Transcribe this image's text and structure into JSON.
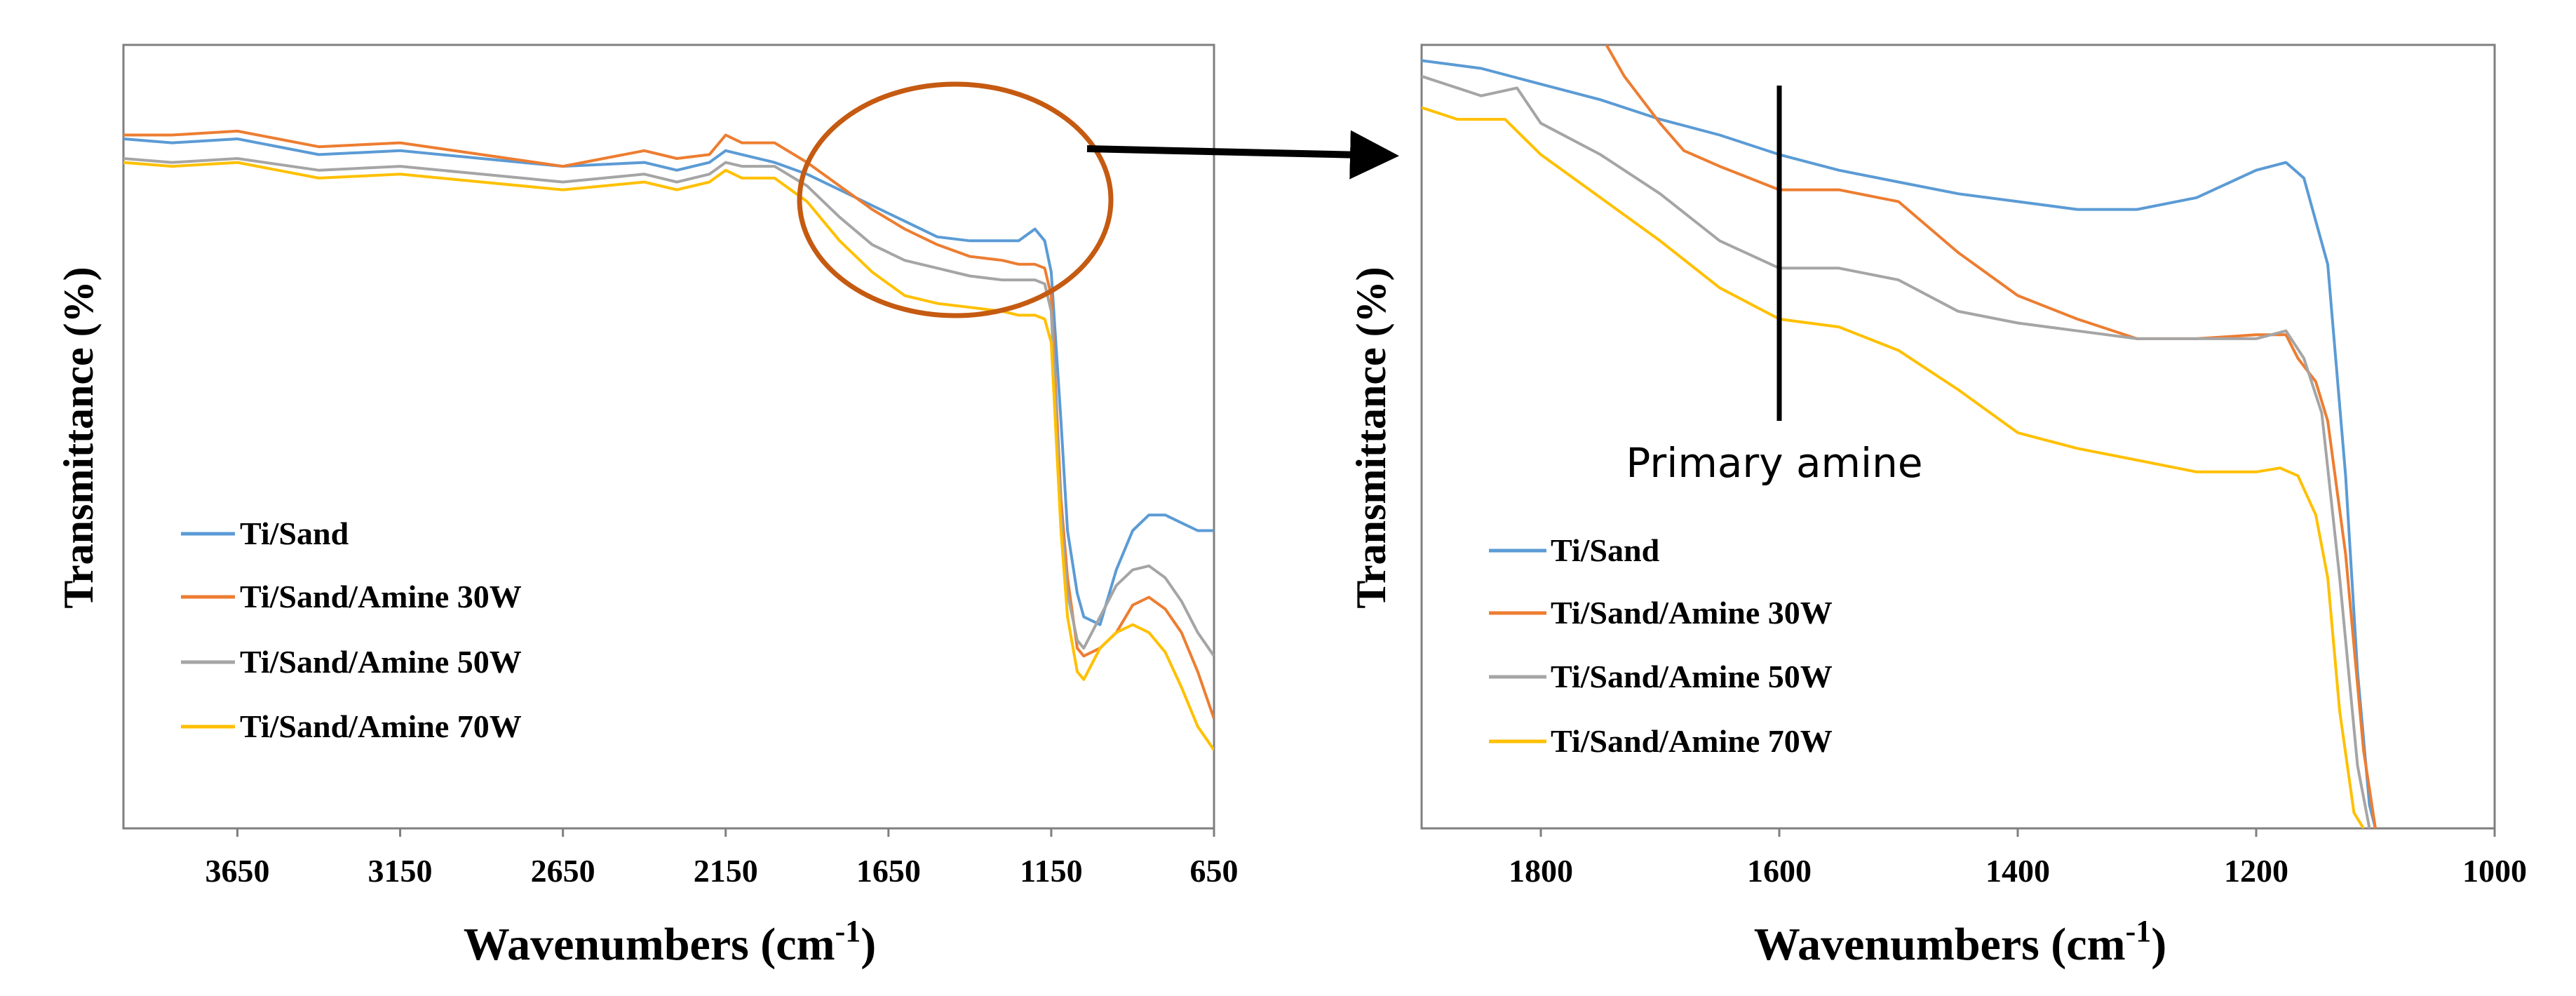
{
  "chart_data": [
    {
      "type": "line",
      "title": "",
      "xlabel": "Wavenumbers (cm",
      "xlabel_sup": "-1",
      "xlabel_close": ")",
      "ylabel": "Transmittance (%)",
      "xlim": [
        4000,
        650
      ],
      "ylim": [
        0,
        100
      ],
      "x_reversed": true,
      "yticks_visible": false,
      "xticks": [
        3650,
        3150,
        2650,
        2150,
        1650,
        1150,
        650
      ],
      "xtick_labels": [
        "3650",
        "3150",
        "2650",
        "2150",
        "1650",
        "1150",
        "650"
      ],
      "legend": [
        "Ti/Sand",
        "Ti/Sand/Amine 30W",
        "Ti/Sand/Amine 50W",
        "Ti/Sand/Amine 70W"
      ],
      "legend_position": "bottom-left",
      "annotation": "orange circle marks 1800-1050 cm-1 region, arrow points to zoomed panel",
      "series": [
        {
          "name": "Ti/Sand",
          "color": "#5b9bd5",
          "x": [
            4000,
            3850,
            3650,
            3400,
            3150,
            2900,
            2650,
            2400,
            2300,
            2200,
            2150,
            2100,
            2000,
            1900,
            1800,
            1700,
            1600,
            1500,
            1400,
            1300,
            1250,
            1200,
            1170,
            1150,
            1120,
            1100,
            1070,
            1050,
            1000,
            950,
            900,
            850,
            800,
            750,
            700,
            650
          ],
          "y": [
            88.0,
            87.5,
            88.0,
            86.0,
            86.5,
            85.5,
            84.5,
            85.0,
            84.0,
            85.0,
            86.5,
            86.0,
            85.0,
            83.5,
            81.5,
            79.5,
            77.5,
            75.5,
            75.0,
            75.0,
            75.0,
            76.5,
            75.0,
            71.0,
            52.0,
            38.0,
            30.0,
            27.0,
            26.0,
            33.0,
            38.0,
            40.0,
            40.0,
            39.0,
            38.0,
            38.0
          ]
        },
        {
          "name": "Ti/Sand/Amine 30W",
          "color": "#ed7d31",
          "x": [
            4000,
            3850,
            3650,
            3400,
            3150,
            2900,
            2650,
            2400,
            2300,
            2200,
            2150,
            2100,
            2000,
            1900,
            1800,
            1700,
            1600,
            1500,
            1400,
            1300,
            1250,
            1200,
            1170,
            1150,
            1120,
            1100,
            1070,
            1050,
            1000,
            950,
            900,
            850,
            800,
            750,
            700,
            650
          ],
          "y": [
            88.5,
            88.5,
            89.0,
            87.0,
            87.5,
            86.0,
            84.5,
            86.5,
            85.5,
            86.0,
            88.5,
            87.5,
            87.5,
            85.0,
            82.0,
            79.0,
            76.5,
            74.5,
            73.0,
            72.5,
            72.0,
            72.0,
            71.5,
            68.0,
            42.0,
            32.0,
            23.0,
            22.0,
            23.0,
            25.0,
            28.5,
            29.5,
            28.0,
            25.0,
            20.0,
            14.0
          ]
        },
        {
          "name": "Ti/Sand/Amine 50W",
          "color": "#a5a5a5",
          "x": [
            4000,
            3850,
            3650,
            3400,
            3150,
            2900,
            2650,
            2400,
            2300,
            2200,
            2150,
            2100,
            2000,
            1900,
            1800,
            1700,
            1600,
            1500,
            1400,
            1300,
            1250,
            1200,
            1170,
            1150,
            1120,
            1100,
            1070,
            1050,
            1000,
            950,
            900,
            850,
            800,
            750,
            700,
            650
          ],
          "y": [
            85.5,
            85.0,
            85.5,
            84.0,
            84.5,
            83.5,
            82.5,
            83.5,
            82.5,
            83.5,
            85.0,
            84.5,
            84.5,
            82.0,
            78.0,
            74.5,
            72.5,
            71.5,
            70.5,
            70.0,
            70.0,
            70.0,
            69.5,
            66.0,
            40.0,
            30.0,
            24.0,
            23.0,
            27.0,
            31.0,
            33.0,
            33.5,
            32.0,
            29.0,
            25.0,
            22.0
          ]
        },
        {
          "name": "Ti/Sand/Amine 70W",
          "color": "#ffc000",
          "x": [
            4000,
            3850,
            3650,
            3400,
            3150,
            2900,
            2650,
            2400,
            2300,
            2200,
            2150,
            2100,
            2000,
            1900,
            1800,
            1700,
            1600,
            1500,
            1400,
            1300,
            1250,
            1200,
            1170,
            1150,
            1120,
            1100,
            1070,
            1050,
            1000,
            950,
            900,
            850,
            800,
            750,
            700,
            650
          ],
          "y": [
            85.0,
            84.5,
            85.0,
            83.0,
            83.5,
            82.5,
            81.5,
            82.5,
            81.5,
            82.5,
            84.0,
            83.0,
            83.0,
            80.0,
            75.0,
            71.0,
            68.0,
            67.0,
            66.5,
            66.0,
            65.5,
            65.5,
            65.0,
            62.0,
            38.0,
            27.0,
            20.0,
            19.0,
            23.0,
            25.0,
            26.0,
            25.0,
            22.5,
            18.0,
            13.0,
            10.0
          ]
        }
      ]
    },
    {
      "type": "line",
      "title": "",
      "xlabel": "Wavenumbers (cm",
      "xlabel_sup": "-1",
      "xlabel_close": ")",
      "ylabel": "Transmittance (%)",
      "xlim": [
        1900,
        1000
      ],
      "ylim": [
        0,
        100
      ],
      "x_reversed": true,
      "yticks_visible": false,
      "xticks": [
        1800,
        1600,
        1400,
        1200,
        1000
      ],
      "xtick_labels": [
        "1800",
        "1600",
        "1400",
        "1200",
        "1000"
      ],
      "legend": [
        "Ti/Sand",
        "Ti/Sand/Amine 30W",
        "Ti/Sand/Amine 50W",
        "Ti/Sand/Amine 70W"
      ],
      "legend_position": "bottom-left",
      "annotation_text": "Primary amine",
      "annotation_x": 1600,
      "series": [
        {
          "name": "Ti/Sand",
          "color": "#5b9bd5",
          "x": [
            1900,
            1850,
            1800,
            1750,
            1700,
            1650,
            1600,
            1550,
            1500,
            1450,
            1400,
            1350,
            1300,
            1250,
            1200,
            1175,
            1160,
            1140,
            1125,
            1115,
            1105,
            1100
          ],
          "y": [
            98.0,
            97.0,
            95.0,
            93.0,
            90.5,
            88.5,
            86.0,
            84.0,
            82.5,
            81.0,
            80.0,
            79.0,
            79.0,
            80.5,
            84.0,
            85.0,
            83.0,
            72.0,
            45.0,
            20.0,
            3.0,
            0.0
          ]
        },
        {
          "name": "Ti/Sand/Amine 30W",
          "color": "#ed7d31",
          "x": [
            1745,
            1730,
            1700,
            1680,
            1650,
            1600,
            1550,
            1500,
            1450,
            1400,
            1350,
            1300,
            1250,
            1200,
            1175,
            1165,
            1150,
            1140,
            1125,
            1110,
            1100
          ],
          "y": [
            100.0,
            96.0,
            90.0,
            86.5,
            84.5,
            81.5,
            81.5,
            80.0,
            73.5,
            68.0,
            65.0,
            62.5,
            62.5,
            63.0,
            63.0,
            60.0,
            57.0,
            52.0,
            35.0,
            10.0,
            0.0
          ]
        },
        {
          "name": "Ti/Sand/Amine 50W",
          "color": "#a5a5a5",
          "x": [
            1900,
            1850,
            1820,
            1800,
            1750,
            1700,
            1650,
            1600,
            1550,
            1500,
            1450,
            1400,
            1350,
            1300,
            1250,
            1200,
            1175,
            1160,
            1145,
            1130,
            1115,
            1105
          ],
          "y": [
            96.0,
            93.5,
            94.5,
            90.0,
            86.0,
            81.0,
            75.0,
            71.5,
            71.5,
            70.0,
            66.0,
            64.5,
            63.5,
            62.5,
            62.5,
            62.5,
            63.5,
            60.0,
            53.0,
            32.0,
            8.0,
            0.0
          ]
        },
        {
          "name": "Ti/Sand/Amine 70W",
          "color": "#ffc000",
          "x": [
            1900,
            1870,
            1830,
            1820,
            1800,
            1750,
            1700,
            1650,
            1600,
            1550,
            1500,
            1450,
            1400,
            1350,
            1300,
            1250,
            1200,
            1180,
            1165,
            1150,
            1140,
            1130,
            1118,
            1110
          ],
          "y": [
            92.0,
            90.5,
            90.5,
            89.0,
            86.0,
            80.5,
            75.0,
            69.0,
            65.0,
            64.0,
            61.0,
            56.0,
            50.5,
            48.5,
            47.0,
            45.5,
            45.5,
            46.0,
            45.0,
            40.0,
            32.0,
            15.0,
            2.0,
            0.0
          ]
        }
      ]
    }
  ]
}
